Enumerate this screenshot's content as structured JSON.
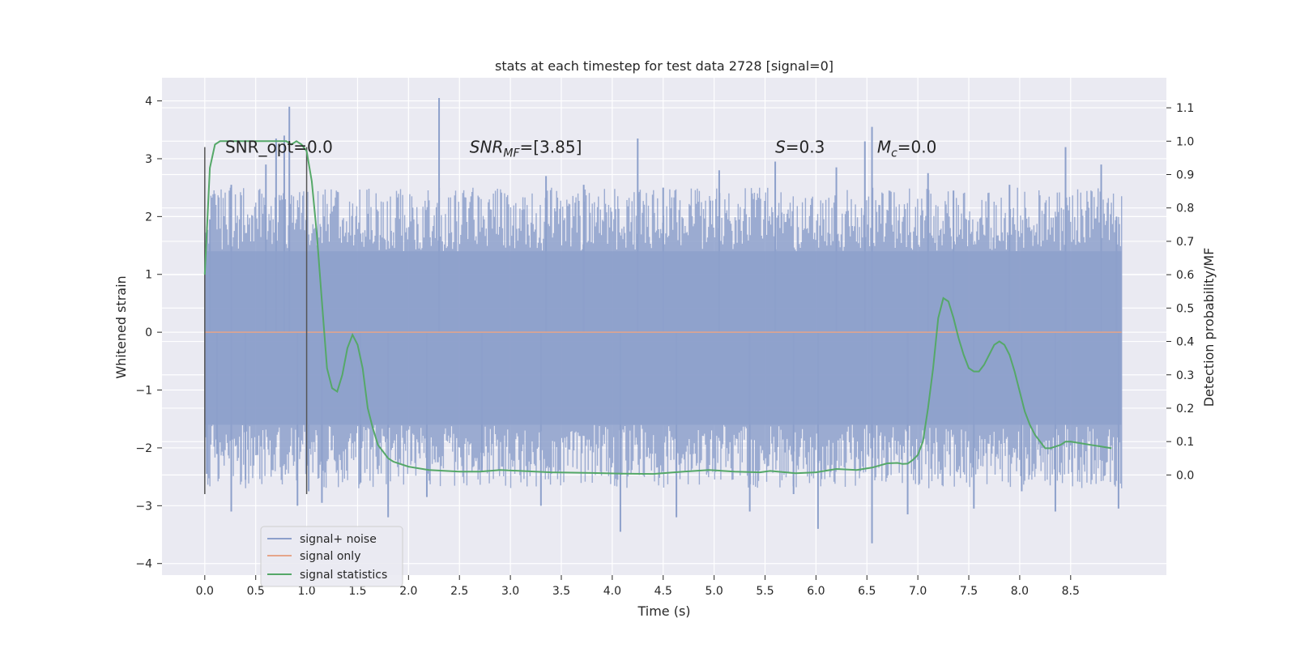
{
  "chart_data": {
    "type": "line",
    "title": "stats at each timestep for test data 2728 [signal=0]",
    "xlabel": "Time (s)",
    "ylabel": "Whitened strain",
    "y2label": "Detection probability/MF",
    "xlim": [
      -0.42,
      9.44
    ],
    "ylim": [
      -4.2,
      4.4
    ],
    "y2lim": [
      -0.3,
      1.19
    ],
    "xticks": [
      0.0,
      0.5,
      1.0,
      1.5,
      2.0,
      2.5,
      3.0,
      3.5,
      4.0,
      4.5,
      5.0,
      5.5,
      6.0,
      6.5,
      7.0,
      7.5,
      8.0,
      8.5
    ],
    "xtick_labels": [
      "0.0",
      "0.5",
      "1.0",
      "1.5",
      "2.0",
      "2.5",
      "3.0",
      "3.5",
      "4.0",
      "4.5",
      "5.0",
      "5.5",
      "6.0",
      "6.5",
      "7.0",
      "7.5",
      "8.0",
      "8.5"
    ],
    "yticks": [
      -4,
      -3,
      -2,
      -1,
      0,
      1,
      2,
      3,
      4
    ],
    "ytick_labels": [
      "−4",
      "−3",
      "−2",
      "−1",
      "0",
      "1",
      "2",
      "3",
      "4"
    ],
    "y2ticks": [
      0.0,
      0.1,
      0.2,
      0.3,
      0.4,
      0.5,
      0.6,
      0.7,
      0.8,
      0.9,
      1.0,
      1.1
    ],
    "y2tick_labels": [
      "0.0",
      "0.1",
      "0.2",
      "0.3",
      "0.4",
      "0.5",
      "0.6",
      "0.7",
      "0.8",
      "0.9",
      "1.0",
      "1.1"
    ],
    "legend": {
      "placement": "lower-left",
      "entries": [
        "signal+ noise",
        "signal only",
        "signal statistics"
      ]
    },
    "annotations": [
      {
        "label": "SNR_opt=0.0",
        "x": 0.2,
        "y": 3.2
      },
      {
        "label": "SNR_MF=[3.85]",
        "x": 2.6,
        "y": 3.2
      },
      {
        "label": "S=0.3",
        "x": 5.6,
        "y": 3.2
      },
      {
        "label": "M_c=0.0",
        "x": 6.6,
        "y": 3.2
      }
    ],
    "vlines": [
      {
        "x": 0.0,
        "ymin": -2.8,
        "ymax": 3.2
      },
      {
        "x": 1.0,
        "ymin": -2.8,
        "ymax": 3.2
      }
    ],
    "series": [
      {
        "name": "signal+ noise",
        "axis": "left",
        "color": "#8da0cb",
        "x_range": [
          0.0,
          9.0
        ],
        "sample_count": 900,
        "noise_band": [
          -1.6,
          1.4
        ],
        "seed": 2728,
        "peaks": [
          {
            "x": 0.02,
            "y": -2.45
          },
          {
            "x": 0.05,
            "y": 1.95
          },
          {
            "x": 0.12,
            "y": -2.1
          },
          {
            "x": 0.26,
            "y": -3.1
          },
          {
            "x": 0.4,
            "y": -2.55
          },
          {
            "x": 0.26,
            "y": 2.55
          },
          {
            "x": 0.6,
            "y": 2.9
          },
          {
            "x": 0.78,
            "y": 3.4
          },
          {
            "x": 0.83,
            "y": 3.9
          },
          {
            "x": 0.7,
            "y": 3.35
          },
          {
            "x": 0.91,
            "y": -3.0
          },
          {
            "x": 1.02,
            "y": -2.75
          },
          {
            "x": 1.15,
            "y": -2.95
          },
          {
            "x": 1.53,
            "y": -2.6
          },
          {
            "x": 1.8,
            "y": -3.2
          },
          {
            "x": 2.3,
            "y": 4.05
          },
          {
            "x": 2.18,
            "y": -2.85
          },
          {
            "x": 2.72,
            "y": -2.4
          },
          {
            "x": 3.3,
            "y": -3.0
          },
          {
            "x": 3.35,
            "y": 2.7
          },
          {
            "x": 3.72,
            "y": 2.55
          },
          {
            "x": 4.08,
            "y": -3.45
          },
          {
            "x": 4.25,
            "y": 3.35
          },
          {
            "x": 4.5,
            "y": 2.5
          },
          {
            "x": 4.63,
            "y": -3.2
          },
          {
            "x": 5.05,
            "y": 2.8
          },
          {
            "x": 5.35,
            "y": -3.1
          },
          {
            "x": 5.6,
            "y": 2.95
          },
          {
            "x": 5.78,
            "y": -2.8
          },
          {
            "x": 6.02,
            "y": -3.4
          },
          {
            "x": 6.2,
            "y": 2.85
          },
          {
            "x": 6.48,
            "y": 3.3
          },
          {
            "x": 6.55,
            "y": 3.55
          },
          {
            "x": 6.55,
            "y": -3.65
          },
          {
            "x": 6.9,
            "y": -3.15
          },
          {
            "x": 7.1,
            "y": 2.75
          },
          {
            "x": 7.35,
            "y": 2.45
          },
          {
            "x": 7.55,
            "y": -3.05
          },
          {
            "x": 7.9,
            "y": 2.55
          },
          {
            "x": 8.02,
            "y": -2.75
          },
          {
            "x": 8.35,
            "y": -3.1
          },
          {
            "x": 8.45,
            "y": 3.2
          },
          {
            "x": 8.8,
            "y": 2.9
          },
          {
            "x": 8.97,
            "y": -3.05
          },
          {
            "x": 8.95,
            "y": 2.0
          }
        ]
      },
      {
        "name": "signal only",
        "axis": "left",
        "color": "#e5a58a",
        "x": [
          0.0,
          9.0
        ],
        "y": [
          0.0,
          0.0
        ]
      },
      {
        "name": "signal statistics",
        "axis": "right",
        "color": "#55a868",
        "x": [
          0.0,
          0.05,
          0.1,
          0.15,
          0.2,
          0.3,
          0.4,
          0.5,
          0.6,
          0.7,
          0.8,
          0.85,
          0.9,
          0.95,
          1.0,
          1.05,
          1.1,
          1.15,
          1.2,
          1.25,
          1.3,
          1.35,
          1.4,
          1.45,
          1.5,
          1.55,
          1.6,
          1.65,
          1.7,
          1.75,
          1.8,
          1.85,
          1.9,
          2.0,
          2.2,
          2.5,
          2.7,
          2.9,
          3.1,
          3.4,
          3.8,
          4.1,
          4.4,
          4.7,
          4.95,
          5.2,
          5.45,
          5.55,
          5.8,
          6.0,
          6.2,
          6.4,
          6.55,
          6.7,
          6.8,
          6.85,
          6.9,
          6.95,
          7.0,
          7.05,
          7.1,
          7.15,
          7.2,
          7.25,
          7.3,
          7.35,
          7.4,
          7.45,
          7.5,
          7.55,
          7.6,
          7.65,
          7.7,
          7.75,
          7.8,
          7.85,
          7.9,
          7.95,
          8.0,
          8.05,
          8.1,
          8.15,
          8.2,
          8.25,
          8.3,
          8.35,
          8.4,
          8.45,
          8.5,
          8.6,
          8.7,
          8.8,
          8.9
        ],
        "y": [
          0.6,
          0.92,
          0.99,
          1.0,
          1.0,
          1.0,
          1.0,
          1.0,
          1.0,
          1.0,
          1.0,
          0.99,
          1.0,
          0.99,
          0.97,
          0.88,
          0.72,
          0.52,
          0.32,
          0.26,
          0.25,
          0.3,
          0.38,
          0.42,
          0.39,
          0.32,
          0.2,
          0.14,
          0.09,
          0.07,
          0.05,
          0.04,
          0.035,
          0.025,
          0.015,
          0.01,
          0.01,
          0.015,
          0.012,
          0.008,
          0.006,
          0.004,
          0.003,
          0.01,
          0.015,
          0.01,
          0.008,
          0.012,
          0.005,
          0.008,
          0.018,
          0.015,
          0.022,
          0.035,
          0.036,
          0.033,
          0.034,
          0.045,
          0.06,
          0.1,
          0.2,
          0.32,
          0.47,
          0.53,
          0.52,
          0.47,
          0.41,
          0.36,
          0.32,
          0.31,
          0.31,
          0.33,
          0.36,
          0.39,
          0.4,
          0.39,
          0.36,
          0.31,
          0.25,
          0.19,
          0.15,
          0.12,
          0.1,
          0.08,
          0.08,
          0.085,
          0.09,
          0.1,
          0.1,
          0.095,
          0.09,
          0.085,
          0.08
        ]
      }
    ]
  }
}
